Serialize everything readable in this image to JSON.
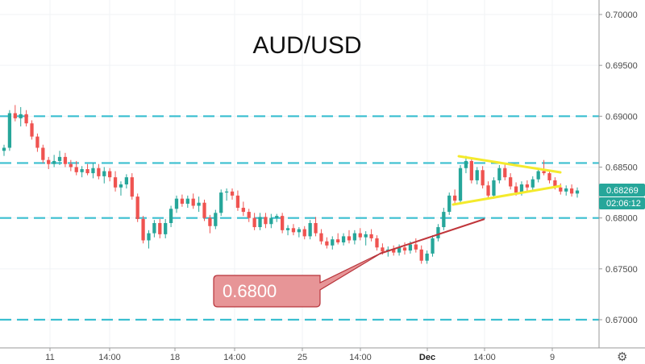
{
  "chart_data": {
    "type": "candlestick",
    "title": "AUD/USD",
    "xlabel": "",
    "ylabel": "",
    "ylim": [
      0.6673,
      0.7015
    ],
    "y_ticks": [
      "0.70000",
      "0.69500",
      "0.69000",
      "0.68500",
      "0.68000",
      "0.67500",
      "0.67000"
    ],
    "x_ticks": [
      {
        "label": "11",
        "bold": false
      },
      {
        "label": "14:00",
        "bold": false
      },
      {
        "label": "18",
        "bold": false
      },
      {
        "label": "14:00",
        "bold": false
      },
      {
        "label": "25",
        "bold": false
      },
      {
        "label": "14:00",
        "bold": false
      },
      {
        "label": "Dec",
        "bold": true
      },
      {
        "label": "14:00",
        "bold": false
      },
      {
        "label": "9",
        "bold": false
      }
    ],
    "horizontal_levels": [
      0.69,
      0.6854,
      0.68,
      0.67
    ],
    "last_price": "0.68269",
    "countdown": "02:06:12",
    "annotation": {
      "text": "0.6800"
    },
    "colors": {
      "up": "#26a69a",
      "down": "#ef5350",
      "level_line": "#3bbfd0",
      "triangle": "#f4ea2c",
      "trendline": "#c0363b",
      "callout_fill": "#e79597",
      "callout_border": "#b8343b",
      "price_tag": "#26a69a"
    },
    "candles": [
      [
        0.6866,
        0.6872,
        0.6861,
        0.6869
      ],
      [
        0.6869,
        0.6906,
        0.6866,
        0.6903
      ],
      [
        0.6903,
        0.6911,
        0.6895,
        0.6898
      ],
      [
        0.6898,
        0.6909,
        0.689,
        0.6902
      ],
      [
        0.6902,
        0.6906,
        0.689,
        0.6893
      ],
      [
        0.6893,
        0.6896,
        0.6877,
        0.688
      ],
      [
        0.688,
        0.6883,
        0.6865,
        0.6869
      ],
      [
        0.6869,
        0.6872,
        0.6854,
        0.6857
      ],
      [
        0.6857,
        0.686,
        0.6848,
        0.6853
      ],
      [
        0.6853,
        0.6862,
        0.685,
        0.6856
      ],
      [
        0.6856,
        0.6866,
        0.6852,
        0.686
      ],
      [
        0.686,
        0.6864,
        0.685,
        0.6853
      ],
      [
        0.6853,
        0.6857,
        0.6846,
        0.685
      ],
      [
        0.685,
        0.6856,
        0.6842,
        0.6845
      ],
      [
        0.6845,
        0.6851,
        0.684,
        0.6848
      ],
      [
        0.6848,
        0.6853,
        0.6842,
        0.6844
      ],
      [
        0.6844,
        0.6854,
        0.6839,
        0.6849
      ],
      [
        0.6849,
        0.6853,
        0.6838,
        0.6841
      ],
      [
        0.6841,
        0.685,
        0.6834,
        0.6846
      ],
      [
        0.6846,
        0.6849,
        0.6836,
        0.684
      ],
      [
        0.684,
        0.6846,
        0.6826,
        0.683
      ],
      [
        0.683,
        0.6836,
        0.6822,
        0.6833
      ],
      [
        0.6833,
        0.6843,
        0.6829,
        0.684
      ],
      [
        0.684,
        0.6844,
        0.6818,
        0.6821
      ],
      [
        0.6821,
        0.6824,
        0.6796,
        0.6799
      ],
      [
        0.6799,
        0.6802,
        0.6775,
        0.6778
      ],
      [
        0.6778,
        0.6788,
        0.677,
        0.6785
      ],
      [
        0.6785,
        0.6798,
        0.6781,
        0.6795
      ],
      [
        0.6795,
        0.6799,
        0.678,
        0.6784
      ],
      [
        0.6784,
        0.6799,
        0.678,
        0.6795
      ],
      [
        0.6795,
        0.6812,
        0.6791,
        0.6809
      ],
      [
        0.6809,
        0.6822,
        0.6805,
        0.6819
      ],
      [
        0.6819,
        0.6823,
        0.6811,
        0.6814
      ],
      [
        0.6814,
        0.6822,
        0.681,
        0.6819
      ],
      [
        0.6819,
        0.6824,
        0.6809,
        0.6812
      ],
      [
        0.6812,
        0.6821,
        0.6806,
        0.6815
      ],
      [
        0.6815,
        0.6818,
        0.6797,
        0.68
      ],
      [
        0.68,
        0.6803,
        0.6785,
        0.6792
      ],
      [
        0.6792,
        0.6808,
        0.6789,
        0.6805
      ],
      [
        0.6805,
        0.6828,
        0.6802,
        0.6825
      ],
      [
        0.6825,
        0.6829,
        0.6817,
        0.6826
      ],
      [
        0.6826,
        0.6829,
        0.6818,
        0.6822
      ],
      [
        0.6822,
        0.6827,
        0.6807,
        0.681
      ],
      [
        0.681,
        0.6816,
        0.6802,
        0.6806
      ],
      [
        0.6806,
        0.6809,
        0.6796,
        0.68
      ],
      [
        0.68,
        0.6805,
        0.6788,
        0.6791
      ],
      [
        0.6791,
        0.6805,
        0.6788,
        0.6801
      ],
      [
        0.6801,
        0.6805,
        0.679,
        0.6794
      ],
      [
        0.6794,
        0.6804,
        0.679,
        0.68
      ],
      [
        0.68,
        0.6804,
        0.6796,
        0.6802
      ],
      [
        0.6802,
        0.6805,
        0.6785,
        0.6788
      ],
      [
        0.6788,
        0.6793,
        0.6783,
        0.679
      ],
      [
        0.679,
        0.6794,
        0.6783,
        0.6786
      ],
      [
        0.6786,
        0.6791,
        0.6781,
        0.6789
      ],
      [
        0.6789,
        0.6792,
        0.6779,
        0.6782
      ],
      [
        0.6782,
        0.6798,
        0.6779,
        0.6795
      ],
      [
        0.6795,
        0.6801,
        0.6782,
        0.6785
      ],
      [
        0.6785,
        0.6789,
        0.6774,
        0.6777
      ],
      [
        0.6777,
        0.6781,
        0.677,
        0.6773
      ],
      [
        0.6773,
        0.6782,
        0.6769,
        0.6779
      ],
      [
        0.6779,
        0.6785,
        0.6774,
        0.6776
      ],
      [
        0.6776,
        0.6785,
        0.6773,
        0.6782
      ],
      [
        0.6782,
        0.6788,
        0.6775,
        0.6778
      ],
      [
        0.6778,
        0.6788,
        0.6774,
        0.6785
      ],
      [
        0.6785,
        0.679,
        0.6778,
        0.6781
      ],
      [
        0.6781,
        0.6787,
        0.6773,
        0.6784
      ],
      [
        0.6784,
        0.6789,
        0.6777,
        0.678
      ],
      [
        0.678,
        0.6783,
        0.6768,
        0.6771
      ],
      [
        0.6771,
        0.6775,
        0.6764,
        0.6767
      ],
      [
        0.6767,
        0.6772,
        0.6762,
        0.6769
      ],
      [
        0.6769,
        0.6773,
        0.6763,
        0.6766
      ],
      [
        0.6766,
        0.6774,
        0.6763,
        0.6771
      ],
      [
        0.6771,
        0.6776,
        0.6764,
        0.6768
      ],
      [
        0.6768,
        0.6777,
        0.6765,
        0.6774
      ],
      [
        0.6774,
        0.678,
        0.6766,
        0.6769
      ],
      [
        0.6769,
        0.6773,
        0.6755,
        0.6758
      ],
      [
        0.6758,
        0.6768,
        0.6755,
        0.6765
      ],
      [
        0.6765,
        0.6783,
        0.6762,
        0.678
      ],
      [
        0.678,
        0.6794,
        0.6777,
        0.6791
      ],
      [
        0.6791,
        0.681,
        0.6788,
        0.6806
      ],
      [
        0.6806,
        0.6825,
        0.6803,
        0.6822
      ],
      [
        0.6822,
        0.6828,
        0.6813,
        0.6817
      ],
      [
        0.6817,
        0.6852,
        0.6814,
        0.6849
      ],
      [
        0.6849,
        0.6861,
        0.6844,
        0.6856
      ],
      [
        0.6856,
        0.6859,
        0.6834,
        0.6837
      ],
      [
        0.6837,
        0.685,
        0.6833,
        0.6847
      ],
      [
        0.6847,
        0.6851,
        0.6829,
        0.6832
      ],
      [
        0.6832,
        0.6836,
        0.6819,
        0.6822
      ],
      [
        0.6822,
        0.684,
        0.6819,
        0.6837
      ],
      [
        0.6837,
        0.6852,
        0.6834,
        0.6849
      ],
      [
        0.6849,
        0.6853,
        0.6837,
        0.684
      ],
      [
        0.684,
        0.6844,
        0.6828,
        0.6831
      ],
      [
        0.6831,
        0.6835,
        0.6822,
        0.6825
      ],
      [
        0.6825,
        0.6836,
        0.6822,
        0.6833
      ],
      [
        0.6833,
        0.6837,
        0.6826,
        0.683
      ],
      [
        0.683,
        0.6841,
        0.6827,
        0.6838
      ],
      [
        0.6838,
        0.6849,
        0.6835,
        0.6846
      ],
      [
        0.6846,
        0.6857,
        0.6842,
        0.6844
      ],
      [
        0.6844,
        0.6847,
        0.6834,
        0.6837
      ],
      [
        0.6837,
        0.684,
        0.6828,
        0.683
      ],
      [
        0.683,
        0.6834,
        0.6823,
        0.6826
      ],
      [
        0.6826,
        0.6832,
        0.6822,
        0.6829
      ],
      [
        0.6829,
        0.6833,
        0.6821,
        0.6824
      ],
      [
        0.6824,
        0.683,
        0.682,
        0.6827
      ]
    ]
  }
}
